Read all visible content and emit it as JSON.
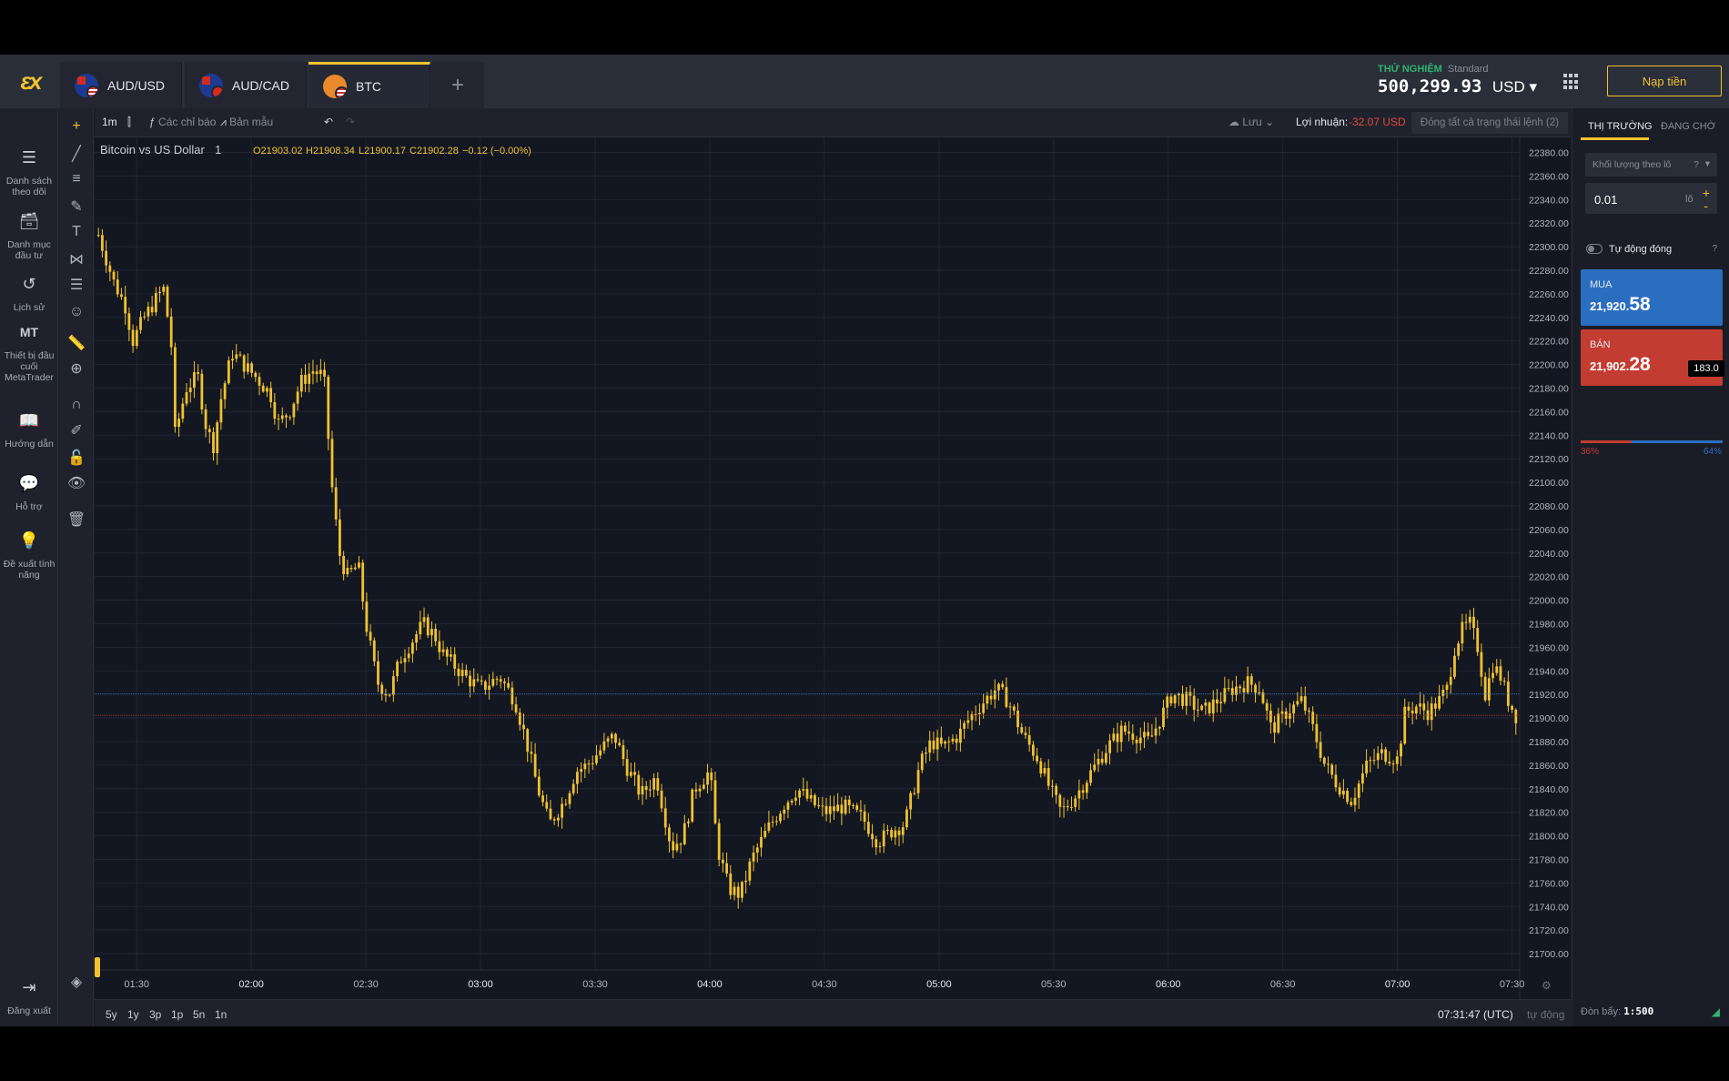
{
  "tabs": [
    {
      "label": "AUD/USD",
      "flag": "au"
    },
    {
      "label": "AUD/CAD",
      "flag": "au-ca"
    },
    {
      "label": "BTC",
      "flag": "btc",
      "active": true
    }
  ],
  "add_tab_label": "+",
  "account": {
    "mode": "THỬ NGHIỆM",
    "type": "Standard",
    "balance": "500,299.93",
    "currency": "USD ▾"
  },
  "deposit_label": "Nạp tiền",
  "nav": [
    {
      "icon": "list-icon",
      "glyph": "☰",
      "label": "Danh sách theo dõi"
    },
    {
      "icon": "portfolio-icon",
      "glyph": "🗃",
      "label": "Danh mục đầu tư"
    },
    {
      "icon": "history-icon",
      "glyph": "↺",
      "label": "Lịch sử"
    },
    {
      "icon": "metatrader-icon",
      "glyph": "MT",
      "label": "Thiết bị đầu cuối MetaTrader"
    },
    {
      "icon": "book-icon",
      "glyph": "📖",
      "label": "Hướng dẫn"
    },
    {
      "icon": "chat-icon",
      "glyph": "💬",
      "label": "Hỗ trợ"
    },
    {
      "icon": "lightbulb-icon",
      "glyph": "💡",
      "label": "Đề xuất tính năng"
    }
  ],
  "logout": {
    "icon": "logout-icon",
    "glyph": "⇥",
    "label": "Đăng xuất"
  },
  "tools": [
    "crosshair-icon",
    "trendline-icon",
    "parallel-lines-icon",
    "brush-icon",
    "text-icon",
    "pattern-icon",
    "fib-icon",
    "emoji-icon",
    "ruler-icon",
    "zoom-in-icon",
    "magnet-icon",
    "lock-drawing-icon",
    "lock-icon",
    "eye-icon",
    "trash-icon"
  ],
  "toolbar": {
    "timeframe": "1m",
    "indicators": "Các chỉ báo",
    "templates": "Bản mẫu",
    "save": "Lưu",
    "profit_label": "Lợi nhuận:",
    "profit_value": "-32.07 USD",
    "close_all": "Đóng tất cả trạng thái lệnh (2)"
  },
  "legend": {
    "symbol": "Bitcoin vs US Dollar",
    "interval": "1",
    "open": "O21903.02",
    "high": "H21908.34",
    "low": "L21900.17",
    "close": "C21902.28",
    "change": "−0.12 (−0.00%)"
  },
  "bottom": {
    "ranges": [
      "5y",
      "1y",
      "3p",
      "1p",
      "5n",
      "1n"
    ],
    "clock": "07:31:47 (UTC)",
    "autoscale": "tự động"
  },
  "panel": {
    "tab_market": "THỊ TRƯỜNG",
    "tab_pending": "ĐANG CHỜ",
    "volume_mode": "Khối lượng theo lô",
    "volume": "0.01",
    "volume_unit": "lô",
    "auto_close": "Tự động đóng",
    "buy_label": "MUA",
    "buy_price_small": "21,920.",
    "buy_price_large": "58",
    "sell_label": "BÁN",
    "sell_price_small": "21,902.",
    "sell_price_large": "28",
    "spread": "183.0",
    "sell_pct": "36%",
    "buy_pct": "64%",
    "sell_fraction": 0.36,
    "leverage_label": "Đòn bẩy:",
    "leverage": "1:500"
  },
  "colors": {
    "candle": "#f0c230",
    "buy": "#2a6ec0",
    "sell": "#c33c31",
    "accent": "#f0c230"
  },
  "chart_data": {
    "type": "candlestick",
    "title": "Bitcoin vs US Dollar",
    "interval": "1",
    "ylim": [
      21690,
      22385
    ],
    "y_ticks": [
      "22380.00",
      "22360.00",
      "22340.00",
      "22320.00",
      "22300.00",
      "22280.00",
      "22260.00",
      "22240.00",
      "22220.00",
      "22200.00",
      "22180.00",
      "22160.00",
      "22140.00",
      "22120.00",
      "22100.00",
      "22080.00",
      "22060.00",
      "22040.00",
      "22020.00",
      "22000.00",
      "21980.00",
      "21960.00",
      "21940.00",
      "21920.00",
      "21900.00",
      "21880.00",
      "21860.00",
      "21840.00",
      "21820.00",
      "21800.00",
      "21780.00",
      "21760.00",
      "21740.00",
      "21720.00",
      "21700.00"
    ],
    "x_ticks": [
      "01:30",
      "02:00",
      "02:30",
      "03:00",
      "03:30",
      "04:00",
      "04:30",
      "05:00",
      "05:30",
      "06:00",
      "06:30",
      "07:00",
      "07:30"
    ],
    "x_range": [
      "01:19",
      "07:32"
    ],
    "price_path": [
      [
        "01:20",
        22310
      ],
      [
        "01:24",
        22270
      ],
      [
        "01:27",
        22250
      ],
      [
        "01:29",
        22220
      ],
      [
        "01:32",
        22240
      ],
      [
        "01:35",
        22255
      ],
      [
        "01:37",
        22265
      ],
      [
        "01:39",
        22220
      ],
      [
        "01:40",
        22140
      ],
      [
        "01:43",
        22180
      ],
      [
        "01:46",
        22190
      ],
      [
        "01:48",
        22150
      ],
      [
        "01:50",
        22130
      ],
      [
        "01:52",
        22170
      ],
      [
        "01:55",
        22210
      ],
      [
        "01:58",
        22200
      ],
      [
        "02:01",
        22190
      ],
      [
        "02:05",
        22175
      ],
      [
        "02:07",
        22150
      ],
      [
        "02:10",
        22160
      ],
      [
        "02:13",
        22185
      ],
      [
        "02:16",
        22195
      ],
      [
        "02:19",
        22190
      ],
      [
        "02:21",
        22100
      ],
      [
        "02:23",
        22040
      ],
      [
        "02:25",
        22020
      ],
      [
        "02:28",
        22030
      ],
      [
        "02:30",
        21980
      ],
      [
        "02:33",
        21930
      ],
      [
        "02:36",
        21920
      ],
      [
        "02:39",
        21950
      ],
      [
        "02:42",
        21965
      ],
      [
        "02:45",
        21980
      ],
      [
        "02:48",
        21970
      ],
      [
        "02:50",
        21955
      ],
      [
        "02:53",
        21945
      ],
      [
        "02:56",
        21935
      ],
      [
        "03:00",
        21925
      ],
      [
        "03:05",
        21935
      ],
      [
        "03:09",
        21915
      ],
      [
        "03:12",
        21880
      ],
      [
        "03:15",
        21840
      ],
      [
        "03:18",
        21810
      ],
      [
        "03:22",
        21830
      ],
      [
        "03:25",
        21855
      ],
      [
        "03:28",
        21860
      ],
      [
        "03:32",
        21875
      ],
      [
        "03:35",
        21885
      ],
      [
        "03:38",
        21860
      ],
      [
        "03:42",
        21835
      ],
      [
        "03:46",
        21850
      ],
      [
        "03:50",
        21790
      ],
      [
        "03:53",
        21800
      ],
      [
        "03:56",
        21840
      ],
      [
        "04:00",
        21855
      ],
      [
        "04:02",
        21790
      ],
      [
        "04:05",
        21755
      ],
      [
        "04:08",
        21750
      ],
      [
        "04:11",
        21780
      ],
      [
        "04:15",
        21805
      ],
      [
        "04:19",
        21825
      ],
      [
        "04:23",
        21840
      ],
      [
        "04:26",
        21830
      ],
      [
        "04:30",
        21820
      ],
      [
        "04:35",
        21825
      ],
      [
        "04:40",
        21815
      ],
      [
        "04:44",
        21795
      ],
      [
        "04:48",
        21805
      ],
      [
        "04:51",
        21810
      ],
      [
        "04:55",
        21860
      ],
      [
        "04:58",
        21880
      ],
      [
        "05:01",
        21875
      ],
      [
        "05:05",
        21885
      ],
      [
        "05:08",
        21900
      ],
      [
        "05:12",
        21915
      ],
      [
        "05:15",
        21925
      ],
      [
        "05:18",
        21915
      ],
      [
        "05:22",
        21885
      ],
      [
        "05:26",
        21865
      ],
      [
        "05:29",
        21840
      ],
      [
        "05:32",
        21820
      ],
      [
        "05:36",
        21835
      ],
      [
        "05:40",
        21855
      ],
      [
        "05:44",
        21875
      ],
      [
        "05:48",
        21890
      ],
      [
        "05:52",
        21885
      ],
      [
        "05:55",
        21880
      ],
      [
        "05:58",
        21900
      ],
      [
        "06:01",
        21920
      ],
      [
        "06:05",
        21915
      ],
      [
        "06:09",
        21905
      ],
      [
        "06:13",
        21915
      ],
      [
        "06:17",
        21925
      ],
      [
        "06:21",
        21930
      ],
      [
        "06:24",
        21925
      ],
      [
        "06:27",
        21890
      ],
      [
        "06:31",
        21905
      ],
      [
        "06:35",
        21915
      ],
      [
        "06:38",
        21890
      ],
      [
        "06:41",
        21860
      ],
      [
        "06:44",
        21845
      ],
      [
        "06:48",
        21830
      ],
      [
        "06:52",
        21860
      ],
      [
        "06:56",
        21870
      ],
      [
        "07:00",
        21865
      ],
      [
        "07:02",
        21905
      ],
      [
        "07:05",
        21910
      ],
      [
        "07:08",
        21905
      ],
      [
        "07:11",
        21915
      ],
      [
        "07:13",
        21925
      ],
      [
        "07:15",
        21960
      ],
      [
        "07:17",
        21975
      ],
      [
        "07:19",
        21980
      ],
      [
        "07:21",
        21960
      ],
      [
        "07:23",
        21920
      ],
      [
        "07:25",
        21945
      ],
      [
        "07:27",
        21935
      ],
      [
        "07:29",
        21915
      ],
      [
        "07:31",
        21902
      ]
    ],
    "price_lines": [
      {
        "name": "ask",
        "value": 21920.58,
        "label": "21920.58",
        "color": "#2a6ec0"
      },
      {
        "name": "bid",
        "value": 21902.28,
        "label": "21902.28",
        "color": "#c33c31"
      }
    ],
    "grid": true
  }
}
